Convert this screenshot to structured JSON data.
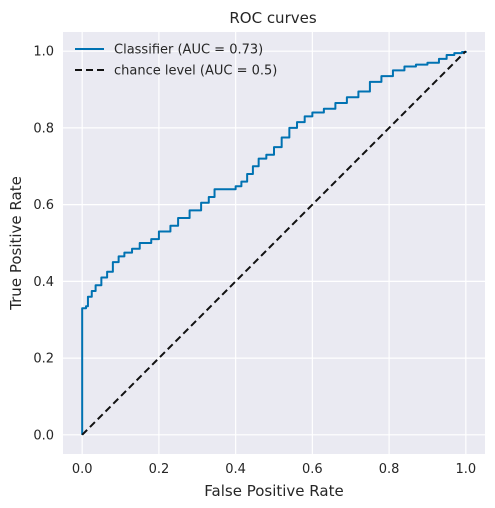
{
  "chart_data": {
    "type": "line",
    "title": "ROC curves",
    "xlabel": "False Positive Rate",
    "ylabel": "True Positive Rate",
    "xlim": [
      -0.05,
      1.05
    ],
    "ylim": [
      -0.05,
      1.05
    ],
    "xticks": [
      0.0,
      0.2,
      0.4,
      0.6,
      0.8,
      1.0
    ],
    "yticks": [
      0.0,
      0.2,
      0.4,
      0.6,
      0.8,
      1.0
    ],
    "xtick_labels": [
      "0.0",
      "0.2",
      "0.4",
      "0.6",
      "0.8",
      "1.0"
    ],
    "ytick_labels": [
      "0.0",
      "0.2",
      "0.4",
      "0.6",
      "0.8",
      "1.0"
    ],
    "grid": true,
    "legend_position": "top-left",
    "background_color": "#eaeaf2",
    "series": [
      {
        "name": "Classifier (AUC = 0.73)",
        "color": "#0072b2",
        "style": "solid",
        "points": [
          [
            0.0,
            0.0
          ],
          [
            0.0,
            0.33
          ],
          [
            0.01,
            0.335
          ],
          [
            0.015,
            0.36
          ],
          [
            0.025,
            0.375
          ],
          [
            0.035,
            0.39
          ],
          [
            0.05,
            0.41
          ],
          [
            0.065,
            0.425
          ],
          [
            0.08,
            0.45
          ],
          [
            0.095,
            0.465
          ],
          [
            0.11,
            0.475
          ],
          [
            0.13,
            0.485
          ],
          [
            0.15,
            0.5
          ],
          [
            0.18,
            0.51
          ],
          [
            0.2,
            0.53
          ],
          [
            0.23,
            0.545
          ],
          [
            0.25,
            0.565
          ],
          [
            0.28,
            0.585
          ],
          [
            0.31,
            0.605
          ],
          [
            0.33,
            0.62
          ],
          [
            0.345,
            0.64
          ],
          [
            0.36,
            0.64
          ],
          [
            0.385,
            0.64
          ],
          [
            0.4,
            0.648
          ],
          [
            0.415,
            0.66
          ],
          [
            0.43,
            0.68
          ],
          [
            0.445,
            0.7
          ],
          [
            0.46,
            0.72
          ],
          [
            0.48,
            0.73
          ],
          [
            0.5,
            0.75
          ],
          [
            0.52,
            0.775
          ],
          [
            0.54,
            0.8
          ],
          [
            0.56,
            0.815
          ],
          [
            0.58,
            0.83
          ],
          [
            0.6,
            0.84
          ],
          [
            0.63,
            0.85
          ],
          [
            0.66,
            0.865
          ],
          [
            0.69,
            0.88
          ],
          [
            0.72,
            0.895
          ],
          [
            0.75,
            0.92
          ],
          [
            0.78,
            0.935
          ],
          [
            0.81,
            0.95
          ],
          [
            0.84,
            0.96
          ],
          [
            0.87,
            0.965
          ],
          [
            0.9,
            0.97
          ],
          [
            0.93,
            0.98
          ],
          [
            0.95,
            0.99
          ],
          [
            0.97,
            0.995
          ],
          [
            0.99,
            0.998
          ],
          [
            1.0,
            1.0
          ]
        ]
      },
      {
        "name": "chance level (AUC = 0.5)",
        "color": "#111111",
        "style": "dashed",
        "points": [
          [
            0.0,
            0.0
          ],
          [
            1.0,
            1.0
          ]
        ]
      }
    ]
  }
}
